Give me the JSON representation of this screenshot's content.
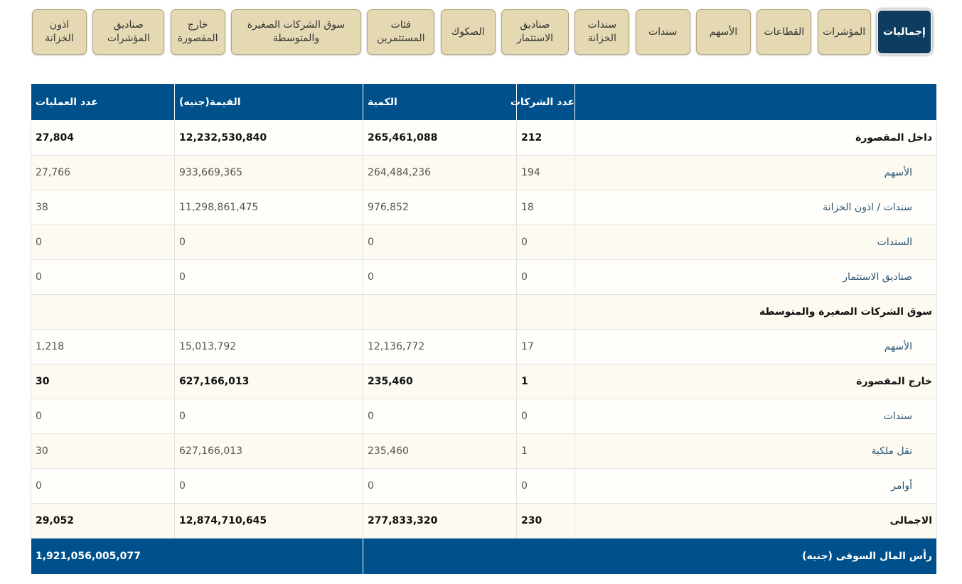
{
  "tabs": [
    "إجماليات",
    "المؤشرات",
    "القطاعات",
    "الأسهم",
    "سندات",
    "سندات الخزانة",
    "صناديق الاستثمار",
    "الصكوك",
    "فئات المستثمرين",
    "سوق الشركات الصغيرة والمتوسطة",
    "خارج المقصورة",
    "صناديق المؤشرات",
    "اذون الخزانة"
  ],
  "active_tab": 0,
  "table": {
    "header": {
      "companies": "عدد الشركات",
      "quantity": "الكمية",
      "value": "القيمة(جنيه)",
      "trades": "عدد العمليات"
    },
    "rows": [
      {
        "label": "داخل المقصورة",
        "bold": true,
        "companies": "212",
        "quantity": "265,461,088",
        "value": "12,232,530,840",
        "trades": "27,804"
      },
      {
        "label": "الأسهم",
        "companies": "194",
        "quantity": "264,484,236",
        "value": "933,669,365",
        "trades": "27,766"
      },
      {
        "label": "سندات / اذون الخزانة",
        "companies": "18",
        "quantity": "976,852",
        "value": "11,298,861,475",
        "trades": "38"
      },
      {
        "label": "السندات",
        "companies": "0",
        "quantity": "0",
        "value": "0",
        "trades": "0"
      },
      {
        "label": "صناديق الاستثمار",
        "companies": "0",
        "quantity": "0",
        "value": "0",
        "trades": "0"
      },
      {
        "label": "سوق الشركات الصغيرة والمتوسطة",
        "bold": true
      },
      {
        "label": "الأسهم",
        "companies": "17",
        "quantity": "12,136,772",
        "value": "15,013,792",
        "trades": "1,218"
      },
      {
        "label": "خارج المقصورة",
        "bold": true,
        "companies": "1",
        "quantity": "235,460",
        "value": "627,166,013",
        "trades": "30"
      },
      {
        "label": "سندات",
        "companies": "0",
        "quantity": "0",
        "value": "0",
        "trades": "0"
      },
      {
        "label": "نقل ملكية",
        "companies": "1",
        "quantity": "235,460",
        "value": "627,166,013",
        "trades": "30"
      },
      {
        "label": "أوامر",
        "companies": "0",
        "quantity": "0",
        "value": "0",
        "trades": "0"
      },
      {
        "label": "الاجمالى",
        "bold": true,
        "companies": "230",
        "quantity": "277,833,320",
        "value": "12,874,710,645",
        "trades": "29,052"
      }
    ],
    "footer": {
      "label": "رأس المال السوقى (جنيه)",
      "value": "1,921,056,005,077"
    }
  }
}
